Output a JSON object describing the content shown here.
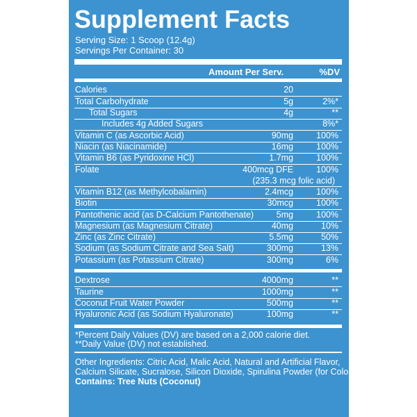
{
  "title": "Supplement Facts",
  "serving_size": "Serving Size: 1 Scoop (12.4g)",
  "servings_per_container": "Servings Per Container: 30",
  "header": {
    "amount": "Amount Per Serv.",
    "dv": "%DV"
  },
  "group1": [
    {
      "name": "Calories",
      "amount": "20",
      "dv": ""
    },
    {
      "name": "Total Carbohydrate",
      "amount": "5g",
      "dv": "2%*"
    },
    {
      "name": "Total Sugars",
      "amount": "4g",
      "dv": "**"
    },
    {
      "name": "Includes 4g Added Sugars",
      "amount": "",
      "dv": "8%*"
    },
    {
      "name": "Vitamin C (as Ascorbic Acid)",
      "amount": "90mg",
      "dv": "100%"
    },
    {
      "name": "Niacin (as Niacinamide)",
      "amount": "16mg",
      "dv": "100%"
    },
    {
      "name": "Vitamin B6 (as Pyridoxine HCl)",
      "amount": "1.7mg",
      "dv": "100%"
    },
    {
      "name": "Folate",
      "amount": "400mcg DFE",
      "dv": "100%",
      "amount2": "(235.3 mcg folic acid)"
    },
    {
      "name": "Vitamin B12 (as Methylcobalamin)",
      "amount": "2.4mcg",
      "dv": "100%"
    },
    {
      "name": "Biotin",
      "amount": "30mcg",
      "dv": "100%"
    },
    {
      "name": "Pantothenic acid (as D-Calcium Pantothenate)",
      "amount": "5mg",
      "dv": "100%"
    },
    {
      "name": "Magnesium (as Magnesium Citrate)",
      "amount": "40mg",
      "dv": "10%"
    },
    {
      "name": "Zinc (as Zinc Citrate)",
      "amount": "5.5mg",
      "dv": "50%"
    },
    {
      "name": "Sodium (as Sodium Citrate and Sea Salt)",
      "amount": "300mg",
      "dv": "13%"
    },
    {
      "name": "Potassium (as Potassium Citrate)",
      "amount": "300mg",
      "dv": "6%"
    }
  ],
  "group2": [
    {
      "name": "Dextrose",
      "amount": "4000mg",
      "dv": "**"
    },
    {
      "name": "Taurine",
      "amount": "1000mg",
      "dv": "**"
    },
    {
      "name": "Coconut Fruit Water Powder",
      "amount": "500mg",
      "dv": "**"
    },
    {
      "name": "Hyaluronic Acid (as Sodium Hyaluronate)",
      "amount": "100mg",
      "dv": "**"
    }
  ],
  "footnote1": "*Percent Daily Values (DV) are based on a 2,000 calorie diet.",
  "footnote2": "**Daily Value (DV) not established.",
  "other_line1": "Other Ingredients: Citric Acid, Malic Acid, Natural and Artificial Flavor,",
  "other_line2": "Calcium Silicate, Sucralose, Silicon Dioxide, Spirulina Powder (for Color).",
  "contains": "Contains: Tree Nuts (Coconut)",
  "colors": {
    "panel": "#3d93cf",
    "text": "#ffffff"
  }
}
